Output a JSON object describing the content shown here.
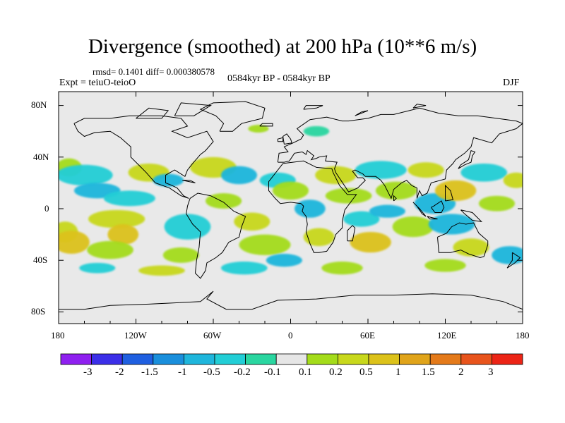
{
  "title": "Divergence (smoothed) at 200 hPa (10**6 m/s)",
  "stats": "rmsd= 0.1401 diff= 0.000380578",
  "expt": "Expt = teiuO-teioO",
  "period": "0584kyr BP - 0584kyr BP",
  "season": "DJF",
  "lat_labels": [
    "80N",
    "40N",
    "0",
    "40S",
    "80S"
  ],
  "lon_labels": [
    "180",
    "120W",
    "60W",
    "0",
    "60E",
    "120E",
    "180"
  ],
  "colorbar": {
    "labels": [
      "-3",
      "-2",
      "-1.5",
      "-1",
      "-0.5",
      "-0.2",
      "-0.1",
      "0.1",
      "0.2",
      "0.5",
      "1",
      "1.5",
      "2",
      "3"
    ],
    "colors": [
      "#8f20f0",
      "#3b2fe8",
      "#1f5fe0",
      "#1a8fdc",
      "#1fb6dc",
      "#22ced6",
      "#2ad6a0",
      "#e6e6e6",
      "#a4dc1a",
      "#c8d81c",
      "#dcc21a",
      "#e0a41a",
      "#e47a1a",
      "#e8541c",
      "#ec2416"
    ]
  },
  "colors": {
    "background": "#e9e9e9",
    "coast": "#000000"
  }
}
